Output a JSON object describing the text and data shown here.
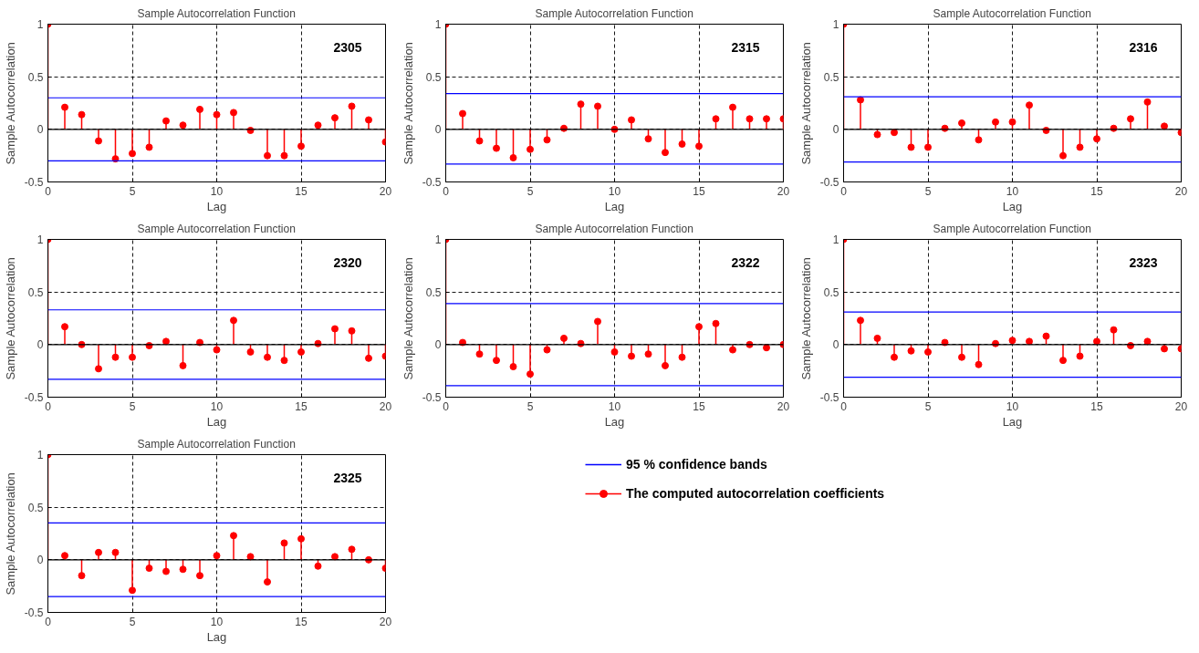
{
  "chart_data": [
    {
      "type": "lollipop",
      "title": "Sample Autocorrelation Function",
      "xlabel": "Lag",
      "ylabel": "Sample Autocorrelation",
      "annotations": [
        "2305"
      ],
      "x": [
        0,
        1,
        2,
        3,
        4,
        5,
        6,
        7,
        8,
        9,
        10,
        11,
        12,
        13,
        14,
        15,
        16,
        17,
        18,
        19,
        20
      ],
      "series": [
        {
          "color": "#ff0000",
          "values": [
            1,
            0.21,
            0.14,
            -0.11,
            -0.28,
            -0.23,
            -0.17,
            0.08,
            0.04,
            0.19,
            0.14,
            0.16,
            -0.01,
            -0.25,
            -0.25,
            -0.16,
            0.04,
            0.11,
            0.22,
            0.09,
            -0.12
          ]
        }
      ],
      "ref_lines": [
        {
          "axis": "y",
          "value": 0.3,
          "color": "#0000ff"
        },
        {
          "axis": "y",
          "value": -0.3,
          "color": "#0000ff"
        },
        {
          "axis": "y",
          "value": 0,
          "color": "#000000"
        }
      ],
      "xlim": [
        0,
        20
      ],
      "ylim": [
        -0.5,
        1
      ],
      "xticks": [
        0,
        5,
        10,
        15,
        20
      ],
      "yticks": [
        -0.5,
        0,
        0.5,
        1
      ],
      "grid": true,
      "marker": "circle"
    },
    {
      "type": "lollipop",
      "title": "Sample Autocorrelation Function",
      "xlabel": "Lag",
      "ylabel": "Sample Autocorrelation",
      "annotations": [
        "2315"
      ],
      "x": [
        0,
        1,
        2,
        3,
        4,
        5,
        6,
        7,
        8,
        9,
        10,
        11,
        12,
        13,
        14,
        15,
        16,
        17,
        18,
        19,
        20
      ],
      "series": [
        {
          "color": "#ff0000",
          "values": [
            1,
            0.15,
            -0.11,
            -0.18,
            -0.27,
            -0.19,
            -0.1,
            0.01,
            0.24,
            0.22,
            0,
            0.09,
            -0.09,
            -0.22,
            -0.14,
            -0.16,
            0.1,
            0.21,
            0.1,
            0.1,
            0.1
          ]
        }
      ],
      "ref_lines": [
        {
          "axis": "y",
          "value": 0.34,
          "color": "#0000ff"
        },
        {
          "axis": "y",
          "value": -0.33,
          "color": "#0000ff"
        },
        {
          "axis": "y",
          "value": 0,
          "color": "#000000"
        }
      ],
      "xlim": [
        0,
        20
      ],
      "ylim": [
        -0.5,
        1
      ],
      "xticks": [
        0,
        5,
        10,
        15,
        20
      ],
      "yticks": [
        -0.5,
        0,
        0.5,
        1
      ],
      "grid": true,
      "marker": "circle"
    },
    {
      "type": "lollipop",
      "title": "Sample Autocorrelation Function",
      "xlabel": "Lag",
      "ylabel": "Sample Autocorrelation",
      "annotations": [
        "2316"
      ],
      "x": [
        0,
        1,
        2,
        3,
        4,
        5,
        6,
        7,
        8,
        9,
        10,
        11,
        12,
        13,
        14,
        15,
        16,
        17,
        18,
        19,
        20
      ],
      "series": [
        {
          "color": "#ff0000",
          "values": [
            1,
            0.28,
            -0.05,
            -0.03,
            -0.17,
            -0.17,
            0.01,
            0.06,
            -0.1,
            0.07,
            0.07,
            0.23,
            -0.01,
            -0.25,
            -0.17,
            -0.09,
            0.01,
            0.1,
            0.26,
            0.03,
            -0.03
          ]
        }
      ],
      "ref_lines": [
        {
          "axis": "y",
          "value": 0.31,
          "color": "#0000ff"
        },
        {
          "axis": "y",
          "value": -0.31,
          "color": "#0000ff"
        },
        {
          "axis": "y",
          "value": 0,
          "color": "#000000"
        }
      ],
      "xlim": [
        0,
        20
      ],
      "ylim": [
        -0.5,
        1
      ],
      "xticks": [
        0,
        5,
        10,
        15,
        20
      ],
      "yticks": [
        -0.5,
        0,
        0.5,
        1
      ],
      "grid": true,
      "marker": "circle"
    },
    {
      "type": "lollipop",
      "title": "Sample Autocorrelation Function",
      "xlabel": "Lag",
      "ylabel": "Sample Autocorrelation",
      "annotations": [
        "2320"
      ],
      "x": [
        0,
        1,
        2,
        3,
        4,
        5,
        6,
        7,
        8,
        9,
        10,
        11,
        12,
        13,
        14,
        15,
        16,
        17,
        18,
        19,
        20
      ],
      "series": [
        {
          "color": "#ff0000",
          "values": [
            1,
            0.17,
            0,
            -0.23,
            -0.12,
            -0.12,
            -0.01,
            0.03,
            -0.2,
            0.02,
            -0.05,
            0.23,
            -0.07,
            -0.12,
            -0.15,
            -0.07,
            0.01,
            0.15,
            0.13,
            -0.13,
            -0.11
          ]
        }
      ],
      "ref_lines": [
        {
          "axis": "y",
          "value": 0.33,
          "color": "#0000ff"
        },
        {
          "axis": "y",
          "value": -0.33,
          "color": "#0000ff"
        },
        {
          "axis": "y",
          "value": 0,
          "color": "#000000"
        }
      ],
      "xlim": [
        0,
        20
      ],
      "ylim": [
        -0.5,
        1
      ],
      "xticks": [
        0,
        5,
        10,
        15,
        20
      ],
      "yticks": [
        -0.5,
        0,
        0.5,
        1
      ],
      "grid": true,
      "marker": "circle"
    },
    {
      "type": "lollipop",
      "title": "Sample Autocorrelation Function",
      "xlabel": "Lag",
      "ylabel": "Sample Autocorrelation",
      "annotations": [
        "2322"
      ],
      "x": [
        0,
        1,
        2,
        3,
        4,
        5,
        6,
        7,
        8,
        9,
        10,
        11,
        12,
        13,
        14,
        15,
        16,
        17,
        18,
        19,
        20
      ],
      "series": [
        {
          "color": "#ff0000",
          "values": [
            1,
            0.02,
            -0.09,
            -0.15,
            -0.21,
            -0.28,
            -0.05,
            0.06,
            0.01,
            0.22,
            -0.07,
            -0.11,
            -0.09,
            -0.2,
            -0.12,
            0.17,
            0.2,
            -0.05,
            0,
            -0.03,
            0
          ]
        }
      ],
      "ref_lines": [
        {
          "axis": "y",
          "value": 0.39,
          "color": "#0000ff"
        },
        {
          "axis": "y",
          "value": -0.39,
          "color": "#0000ff"
        },
        {
          "axis": "y",
          "value": 0,
          "color": "#000000"
        }
      ],
      "xlim": [
        0,
        20
      ],
      "ylim": [
        -0.5,
        1
      ],
      "xticks": [
        0,
        5,
        10,
        15,
        20
      ],
      "yticks": [
        -0.5,
        0,
        0.5,
        1
      ],
      "grid": true,
      "marker": "circle"
    },
    {
      "type": "lollipop",
      "title": "Sample Autocorrelation Function",
      "xlabel": "Lag",
      "ylabel": "Sample Autocorrelation",
      "annotations": [
        "2323"
      ],
      "x": [
        0,
        1,
        2,
        3,
        4,
        5,
        6,
        7,
        8,
        9,
        10,
        11,
        12,
        13,
        14,
        15,
        16,
        17,
        18,
        19,
        20
      ],
      "series": [
        {
          "color": "#ff0000",
          "values": [
            1,
            0.23,
            0.06,
            -0.12,
            -0.06,
            -0.07,
            0.02,
            -0.12,
            -0.19,
            0.01,
            0.04,
            0.03,
            0.08,
            -0.15,
            -0.11,
            0.03,
            0.14,
            -0.01,
            0.03,
            -0.04,
            -0.04
          ]
        }
      ],
      "ref_lines": [
        {
          "axis": "y",
          "value": 0.31,
          "color": "#0000ff"
        },
        {
          "axis": "y",
          "value": -0.31,
          "color": "#0000ff"
        },
        {
          "axis": "y",
          "value": 0,
          "color": "#000000"
        }
      ],
      "xlim": [
        0,
        20
      ],
      "ylim": [
        -0.5,
        1
      ],
      "xticks": [
        0,
        5,
        10,
        15,
        20
      ],
      "yticks": [
        -0.5,
        0,
        0.5,
        1
      ],
      "grid": true,
      "marker": "circle"
    },
    {
      "type": "lollipop",
      "title": "Sample Autocorrelation Function",
      "xlabel": "Lag",
      "ylabel": "Sample Autocorrelation",
      "annotations": [
        "2325"
      ],
      "x": [
        0,
        1,
        2,
        3,
        4,
        5,
        6,
        7,
        8,
        9,
        10,
        11,
        12,
        13,
        14,
        15,
        16,
        17,
        18,
        19,
        20
      ],
      "series": [
        {
          "color": "#ff0000",
          "values": [
            1,
            0.04,
            -0.15,
            0.07,
            0.07,
            -0.29,
            -0.08,
            -0.11,
            -0.09,
            -0.15,
            0.04,
            0.23,
            0.03,
            -0.21,
            0.16,
            0.2,
            -0.06,
            0.03,
            0.1,
            0,
            -0.08
          ]
        }
      ],
      "ref_lines": [
        {
          "axis": "y",
          "value": 0.35,
          "color": "#0000ff"
        },
        {
          "axis": "y",
          "value": -0.35,
          "color": "#0000ff"
        },
        {
          "axis": "y",
          "value": 0,
          "color": "#000000"
        }
      ],
      "xlim": [
        0,
        20
      ],
      "ylim": [
        -0.5,
        1
      ],
      "xticks": [
        0,
        5,
        10,
        15,
        20
      ],
      "yticks": [
        -0.5,
        0,
        0.5,
        1
      ],
      "grid": true,
      "marker": "circle"
    },
    {
      "type": "other",
      "series": [
        {
          "name": "95 % confidence bands",
          "color": "#0000ff",
          "type": "line"
        },
        {
          "name": "The computed autocorrelation coefficients",
          "color": "#ff0000",
          "type": "lollipop"
        }
      ]
    }
  ]
}
